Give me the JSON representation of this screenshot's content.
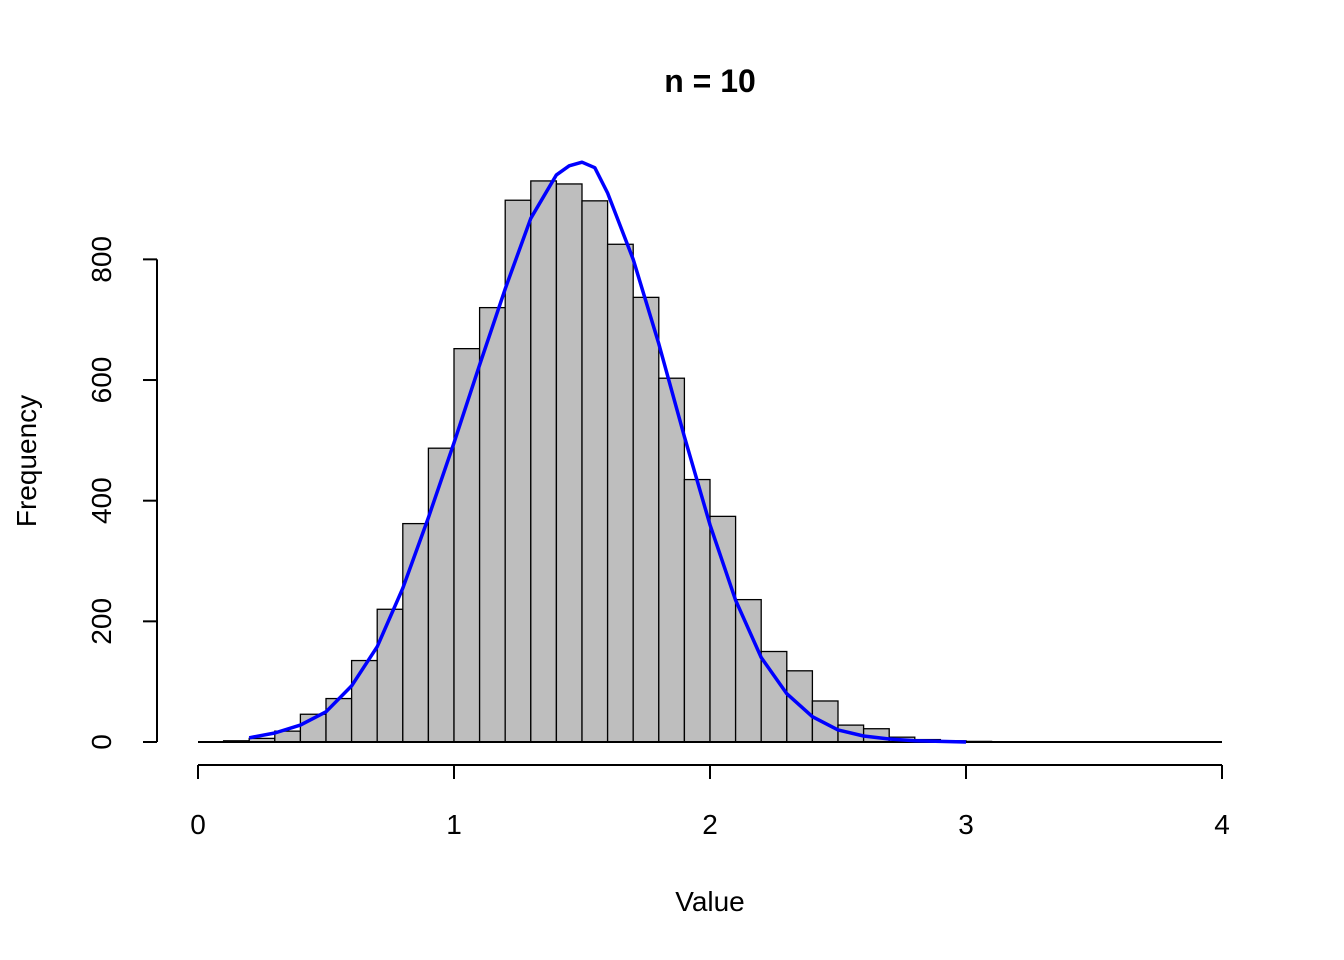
{
  "chart_data": {
    "type": "bar",
    "title": "n = 10",
    "xlabel": "Value",
    "ylabel": "Frequency",
    "xlim": [
      0,
      4
    ],
    "ylim": [
      0,
      960
    ],
    "x_ticks": [
      "0",
      "1",
      "2",
      "3",
      "4"
    ],
    "y_ticks": [
      "0",
      "200",
      "400",
      "600",
      "800"
    ],
    "bin_width": 0.1,
    "bins_start": [
      0.1,
      0.2,
      0.3,
      0.4,
      0.5,
      0.6,
      0.7,
      0.8,
      0.9,
      1.0,
      1.1,
      1.2,
      1.3,
      1.4,
      1.5,
      1.6,
      1.7,
      1.8,
      1.9,
      2.0,
      2.1,
      2.2,
      2.3,
      2.4,
      2.5,
      2.6,
      2.7,
      2.8,
      2.9,
      3.0
    ],
    "values": [
      2,
      6,
      18,
      46,
      72,
      135,
      220,
      362,
      487,
      652,
      720,
      898,
      930,
      925,
      897,
      825,
      737,
      603,
      435,
      374,
      236,
      150,
      118,
      68,
      28,
      22,
      8,
      4,
      2,
      1
    ],
    "grid": false,
    "legend": "none",
    "series": [
      {
        "type": "line",
        "color": "#0000ff",
        "x": [
          0.2,
          0.3,
          0.4,
          0.5,
          0.6,
          0.7,
          0.8,
          0.9,
          1.0,
          1.1,
          1.2,
          1.3,
          1.4,
          1.45,
          1.5,
          1.55,
          1.6,
          1.7,
          1.8,
          1.9,
          2.0,
          2.1,
          2.2,
          2.3,
          2.4,
          2.5,
          2.6,
          2.7,
          2.8,
          2.9,
          3.0
        ],
        "values": [
          7,
          15,
          28,
          50,
          93,
          158,
          255,
          372,
          496,
          625,
          751,
          868,
          940,
          955,
          961,
          952,
          910,
          800,
          660,
          506,
          360,
          235,
          140,
          80,
          42,
          20,
          10,
          5,
          2,
          1,
          0
        ]
      }
    ]
  }
}
